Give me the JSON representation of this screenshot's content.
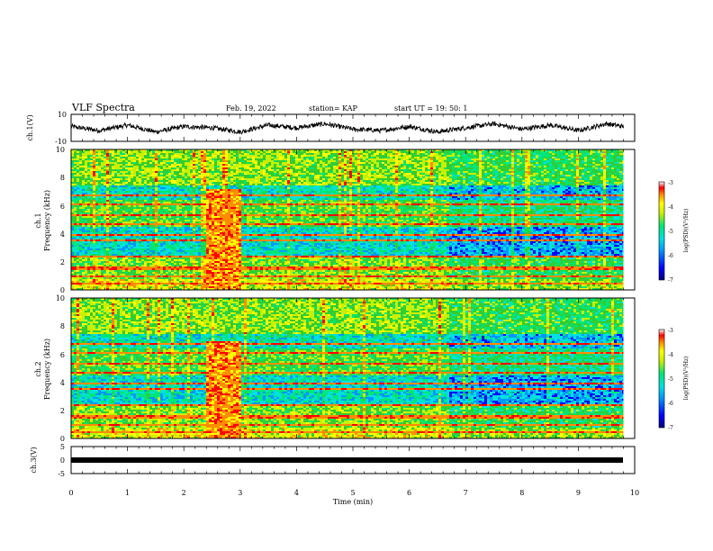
{
  "header": {
    "title": "VLF Spectra",
    "date": "Feb. 19, 2022",
    "station": "station= KAP",
    "start": "start  UT =   19: 50: 1"
  },
  "colors": {
    "colormap": [
      "#00007f",
      "#0000ff",
      "#0096ff",
      "#00e0e0",
      "#00e676",
      "#32cd32",
      "#c8f000",
      "#ffff00",
      "#ff8c00",
      "#ff0000",
      "#ffffff"
    ],
    "trace": "#000000",
    "axes": "#000000"
  },
  "chart_data": [
    {
      "id": "ch1_voltage",
      "type": "line",
      "ylabel": "ch.1(V)",
      "ylim": [
        -10,
        10
      ],
      "yticks": [
        "10",
        "-10"
      ],
      "xlim": [
        0,
        10
      ],
      "series": [
        {
          "x": [
            0,
            0.5,
            1,
            1.5,
            2,
            2.5,
            3,
            3.5,
            4,
            4.5,
            5,
            5.5,
            6,
            6.5,
            7,
            7.5,
            8,
            8.5,
            9,
            9.5,
            9.8
          ],
          "values": [
            1,
            -2,
            2,
            -3,
            1,
            0,
            -3,
            2,
            0,
            3,
            -1,
            -2,
            1,
            -3,
            0,
            3,
            -1,
            2,
            -2,
            3,
            1
          ]
        }
      ]
    },
    {
      "id": "ch1_spectrogram",
      "type": "heatmap",
      "ylabel": "ch.1\nFrequency (kHz)",
      "ylim": [
        0,
        10
      ],
      "yticks": [
        "0",
        "2",
        "4",
        "6",
        "8",
        "10"
      ],
      "xlim": [
        0,
        10
      ],
      "colorbar": {
        "label": "log(PSD)(V²/Hz)",
        "range": [
          -7,
          -3
        ],
        "ticks": [
          "-3",
          "-4",
          "-5",
          "-6",
          "-7"
        ]
      },
      "time_segments": [
        {
          "t0": 0,
          "t1": 2.35,
          "level": "baseline"
        },
        {
          "t0": 2.35,
          "t1": 3.0,
          "level": "intense",
          "top_khz": 7.2
        },
        {
          "t0": 3.0,
          "t1": 6.7,
          "level": "baseline"
        },
        {
          "t0": 6.7,
          "t1": 9.8,
          "level": "quiet"
        }
      ]
    },
    {
      "id": "ch2_spectrogram",
      "type": "heatmap",
      "ylabel": "ch.2\nFrequency (kHz)",
      "ylim": [
        0,
        10
      ],
      "yticks": [
        "0",
        "2",
        "4",
        "6",
        "8",
        "10"
      ],
      "xlim": [
        0,
        10
      ],
      "colorbar": {
        "label": "log(PSD)(V²/Hz)",
        "range": [
          -7,
          -3
        ],
        "ticks": [
          "-3",
          "-4",
          "-5",
          "-6",
          "-7"
        ]
      },
      "time_segments": [
        {
          "t0": 0,
          "t1": 2.35,
          "level": "baseline"
        },
        {
          "t0": 2.35,
          "t1": 3.0,
          "level": "intense",
          "top_khz": 7.0
        },
        {
          "t0": 3.0,
          "t1": 6.7,
          "level": "baseline"
        },
        {
          "t0": 6.7,
          "t1": 9.8,
          "level": "quiet"
        }
      ]
    },
    {
      "id": "ch3_voltage",
      "type": "line",
      "ylabel": "ch.3(V)",
      "ylim": [
        -5,
        5
      ],
      "yticks": [
        "5",
        "0",
        "-5"
      ],
      "xlim": [
        0,
        10
      ],
      "series": [
        {
          "x": [
            0,
            9.8
          ],
          "values": [
            0,
            0
          ]
        }
      ]
    }
  ],
  "xaxis": {
    "label": "Time (min)",
    "ticks": [
      "0",
      "1",
      "2",
      "3",
      "4",
      "5",
      "6",
      "7",
      "8",
      "9",
      "10"
    ]
  }
}
